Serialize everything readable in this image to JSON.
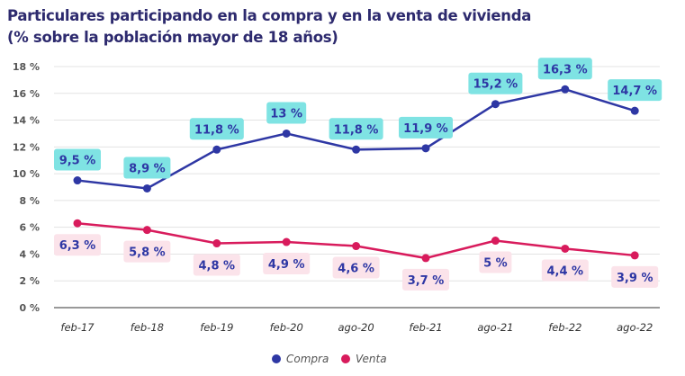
{
  "chart_data": {
    "type": "line",
    "title": "Particulares participando en la compra y en la venta de vivienda",
    "subtitle": "(% sobre la población mayor de 18 años)",
    "categories": [
      "feb-17",
      "feb-18",
      "feb-19",
      "feb-20",
      "ago-20",
      "feb-21",
      "ago-21",
      "feb-22",
      "ago-22"
    ],
    "ylim": [
      0,
      18
    ],
    "yticks": [
      0,
      2,
      4,
      6,
      8,
      10,
      12,
      14,
      16,
      18
    ],
    "ytick_labels": [
      "0 %",
      "2 %",
      "4 %",
      "6 %",
      "8 %",
      "10 %",
      "12 %",
      "14 %",
      "16 %",
      "18 %"
    ],
    "grid": true,
    "legend": "bottom",
    "series": [
      {
        "name": "Compra",
        "color": "#2e37a4",
        "label_bg": "#7fe3e3",
        "label_color": "#2e37a4",
        "values": [
          9.5,
          8.9,
          11.8,
          13,
          11.8,
          11.9,
          15.2,
          16.3,
          14.7
        ],
        "labels": [
          "9,5 %",
          "8,9 %",
          "11,8 %",
          "13 %",
          "11,8 %",
          "11,9 %",
          "15,2 %",
          "16,3 %",
          "14,7 %"
        ]
      },
      {
        "name": "Venta",
        "color": "#d81b5c",
        "label_bg": "#fbe3ea",
        "label_color": "#2e37a4",
        "values": [
          6.3,
          5.8,
          4.8,
          4.9,
          4.6,
          3.7,
          5,
          4.4,
          3.9
        ],
        "labels": [
          "6,3 %",
          "5,8 %",
          "4,8 %",
          "4,9 %",
          "4,6 %",
          "3,7 %",
          "5 %",
          "4,4 %",
          "3,9 %"
        ]
      }
    ]
  }
}
